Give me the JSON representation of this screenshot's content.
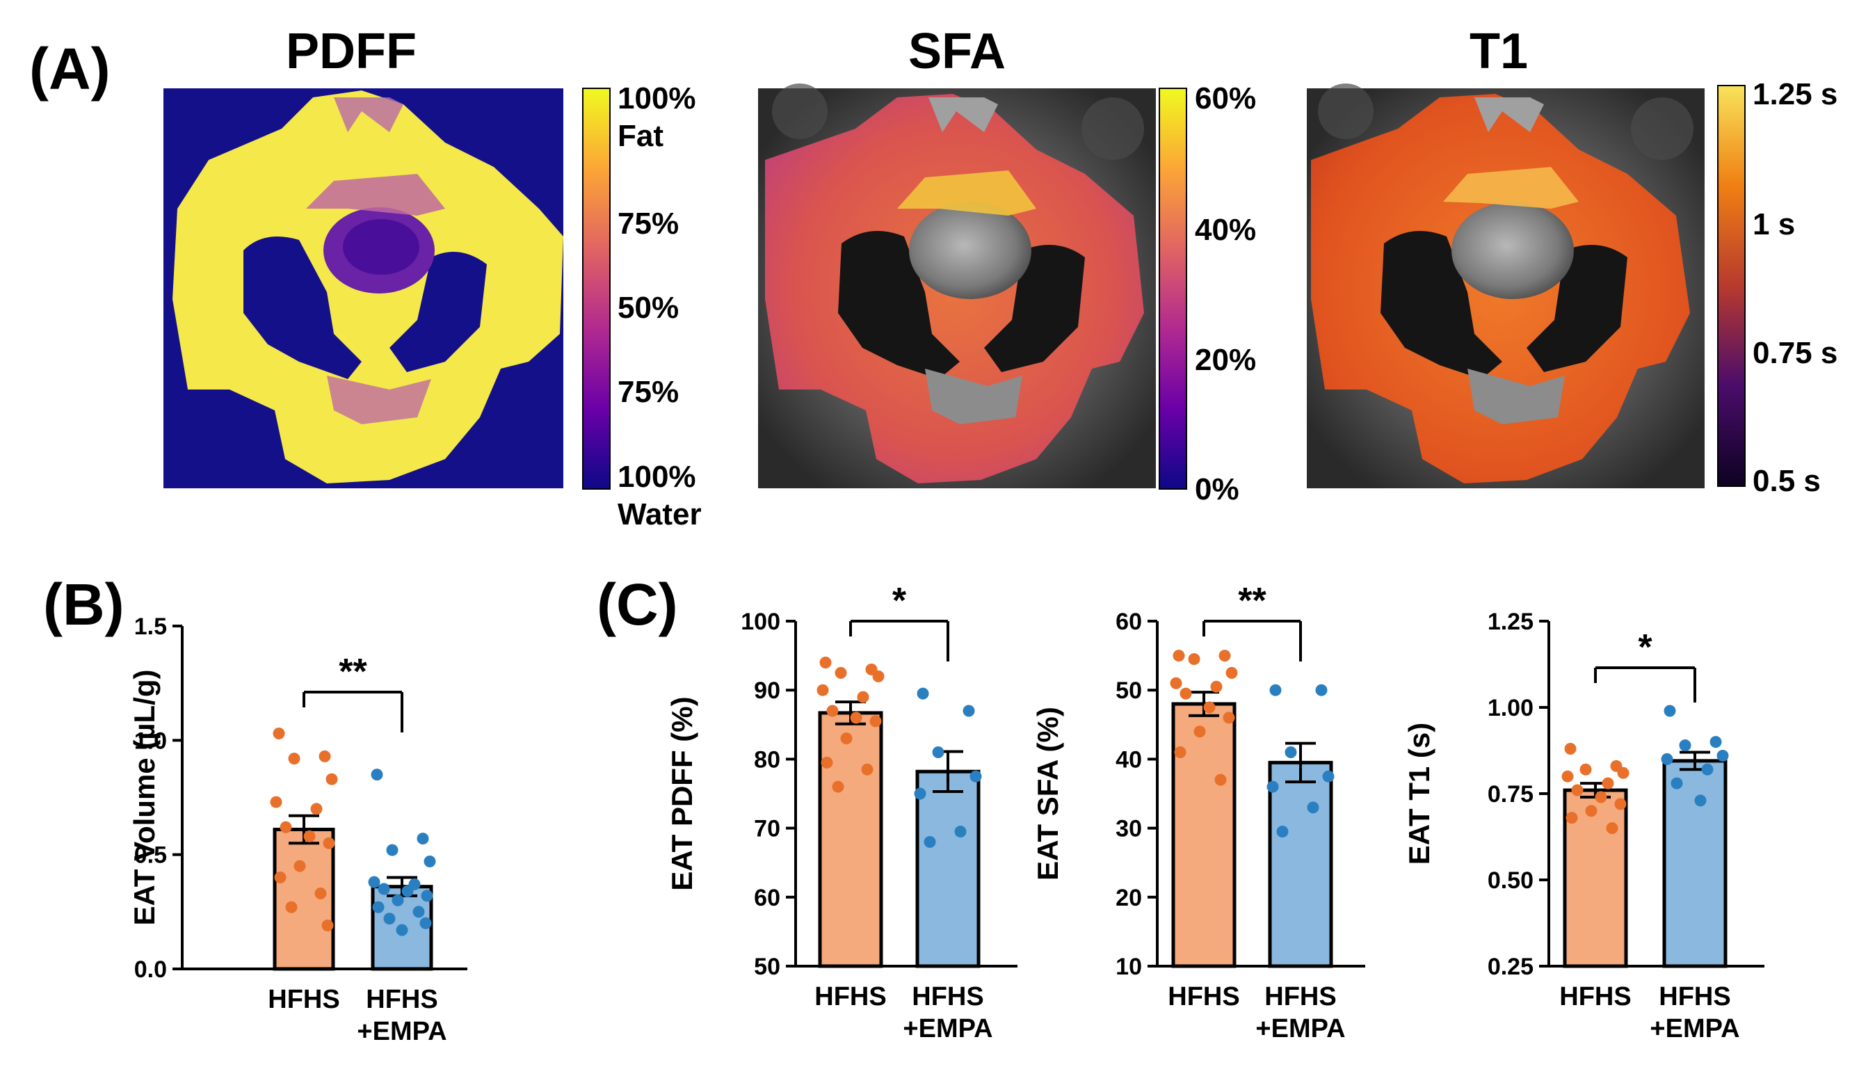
{
  "panel_a": {
    "label": "(A)",
    "maps": [
      {
        "title": "PDFF",
        "colorbar_ticks": [
          "100%",
          "Fat",
          "75%",
          "50%",
          "75%",
          "100%",
          "Water"
        ]
      },
      {
        "title": "SFA",
        "colorbar_ticks": [
          "60%",
          "40%",
          "20%",
          "0%"
        ]
      },
      {
        "title": "T1",
        "colorbar_ticks": [
          "1.25 s",
          "1 s",
          "0.75 s",
          "0.5 s"
        ]
      }
    ],
    "colormap": [
      "#0d0887",
      "#6a00a8",
      "#b12a90",
      "#e16462",
      "#fca636",
      "#f0f921"
    ]
  },
  "panel_b": {
    "label": "(B)"
  },
  "panel_c": {
    "label": "(C)"
  },
  "colors": {
    "hfhs_fill": "#f4aa7c",
    "hfhs_dot": "#e8702a",
    "empa_fill": "#8bb8de",
    "empa_dot": "#2a7fc1"
  },
  "chart_data": [
    {
      "type": "bar",
      "panel": "B",
      "categories": [
        "HFHS",
        "HFHS\n+EMPA"
      ],
      "category_lines": [
        [
          "HFHS"
        ],
        [
          "HFHS",
          "+EMPA"
        ]
      ],
      "ylabel": "EAT Volume (µL/g)",
      "ylim": [
        0,
        1.5
      ],
      "yticks": [
        "0.0",
        "0.5",
        "1.0",
        "1.5"
      ],
      "ytick_values": [
        0,
        0.5,
        1.0,
        1.5
      ],
      "means": [
        0.61,
        0.36
      ],
      "sem": [
        0.06,
        0.04
      ],
      "points": [
        [
          1.03,
          0.93,
          0.92,
          0.83,
          0.73,
          0.7,
          0.62,
          0.58,
          0.55,
          0.45,
          0.4,
          0.33,
          0.27,
          0.19
        ],
        [
          0.85,
          0.57,
          0.52,
          0.47,
          0.38,
          0.37,
          0.35,
          0.34,
          0.32,
          0.3,
          0.27,
          0.25,
          0.22,
          0.2,
          0.17
        ]
      ],
      "significance": "**"
    },
    {
      "type": "bar",
      "panel": "C1",
      "categories": [
        "HFHS",
        "HFHS\n+EMPA"
      ],
      "category_lines": [
        [
          "HFHS"
        ],
        [
          "HFHS",
          "+EMPA"
        ]
      ],
      "ylabel": "EAT PDFF (%)",
      "ylim": [
        50,
        100
      ],
      "yticks": [
        "50",
        "60",
        "70",
        "80",
        "90",
        "100"
      ],
      "ytick_values": [
        50,
        60,
        70,
        80,
        90,
        100
      ],
      "means": [
        86.7,
        78.2
      ],
      "sem": [
        1.6,
        2.9
      ],
      "points": [
        [
          94.0,
          93.0,
          92.5,
          92.0,
          90.0,
          89.0,
          87.0,
          86.0,
          85.5,
          83.0,
          79.5,
          78.5,
          76.0
        ],
        [
          89.5,
          87.0,
          81.0,
          77.5,
          75.0,
          69.5,
          68.0
        ]
      ],
      "significance": "*"
    },
    {
      "type": "bar",
      "panel": "C2",
      "categories": [
        "HFHS",
        "HFHS\n+EMPA"
      ],
      "category_lines": [
        [
          "HFHS"
        ],
        [
          "HFHS",
          "+EMPA"
        ]
      ],
      "ylabel": "EAT SFA (%)",
      "ylim": [
        10,
        60
      ],
      "yticks": [
        "10",
        "20",
        "30",
        "40",
        "50",
        "60"
      ],
      "ytick_values": [
        10,
        20,
        30,
        40,
        50,
        60
      ],
      "means": [
        48.0,
        39.5
      ],
      "sem": [
        1.7,
        2.8
      ],
      "points": [
        [
          55.0,
          55.0,
          54.5,
          52.5,
          51.0,
          50.5,
          49.5,
          47.5,
          46.0,
          44.0,
          41.0,
          37.0
        ],
        [
          50.0,
          50.0,
          41.0,
          37.5,
          36.0,
          33.0,
          29.5
        ]
      ],
      "significance": "**"
    },
    {
      "type": "bar",
      "panel": "C3",
      "categories": [
        "HFHS",
        "HFHS\n+EMPA"
      ],
      "category_lines": [
        [
          "HFHS"
        ],
        [
          "HFHS",
          "+EMPA"
        ]
      ],
      "ylabel": "EAT T1 (s)",
      "ylim": [
        0.25,
        1.25
      ],
      "yticks": [
        "0.25",
        "0.50",
        "0.75",
        "1.00",
        "1.25"
      ],
      "ytick_values": [
        0.25,
        0.5,
        0.75,
        1.0,
        1.25
      ],
      "means": [
        0.76,
        0.845
      ],
      "sem": [
        0.02,
        0.025
      ],
      "points": [
        [
          0.88,
          0.83,
          0.82,
          0.81,
          0.8,
          0.78,
          0.76,
          0.74,
          0.72,
          0.7,
          0.68,
          0.65
        ],
        [
          0.99,
          0.9,
          0.89,
          0.86,
          0.85,
          0.82,
          0.78,
          0.73
        ]
      ],
      "significance": "*"
    }
  ]
}
